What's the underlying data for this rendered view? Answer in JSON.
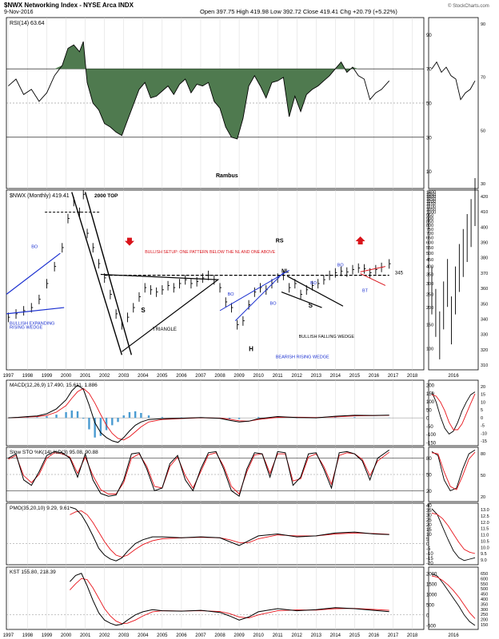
{
  "header": {
    "symbol_line": "$NWX Networking Index - NYSE Arca INDX",
    "date": "9-Nov-2016",
    "ohlc": "Open 397.75  High 419.98  Low 392.72  Close 419.41  Chg +20.79 (+5.22%)",
    "watermark": "© StockCharts.com"
  },
  "colors": {
    "price": "#000000",
    "signal": "#e8141b",
    "hist": "#4a9bd1",
    "rsi_fill": "#4f7a4f",
    "annot_blue": "#1a2fd0",
    "annot_red": "#d9141b"
  },
  "chart_data": [
    {
      "type": "line",
      "panel": "rsi",
      "title": "RSI(14) 63.64",
      "yticks": [
        10,
        30,
        50,
        70,
        90
      ],
      "ylim": [
        0,
        100
      ],
      "x": [
        1997.0,
        1997.4,
        1997.8,
        1998.2,
        1998.6,
        1999.0,
        1999.4,
        1999.8,
        2000.1,
        2000.4,
        2000.7,
        2000.9,
        2001.1,
        2001.4,
        2001.7,
        2002.0,
        2002.3,
        2002.6,
        2002.9,
        2003.2,
        2003.5,
        2003.8,
        2004.1,
        2004.4,
        2004.7,
        2005.0,
        2005.3,
        2005.6,
        2005.9,
        2006.2,
        2006.5,
        2006.8,
        2007.1,
        2007.4,
        2007.7,
        2008.0,
        2008.3,
        2008.6,
        2008.9,
        2009.2,
        2009.5,
        2009.8,
        2010.1,
        2010.4,
        2010.7,
        2011.0,
        2011.3,
        2011.6,
        2011.9,
        2012.2,
        2012.5,
        2012.8,
        2013.1,
        2013.4,
        2013.7,
        2014.0,
        2014.3,
        2014.6,
        2014.9,
        2015.2,
        2015.5,
        2015.8,
        2016.1,
        2016.4,
        2016.8
      ],
      "values": [
        60,
        64,
        55,
        58,
        51,
        56,
        66,
        72,
        82,
        84,
        80,
        86,
        62,
        50,
        46,
        38,
        36,
        33,
        31,
        40,
        49,
        58,
        62,
        53,
        54,
        57,
        60,
        55,
        61,
        64,
        56,
        61,
        60,
        62,
        51,
        47,
        36,
        30,
        29,
        41,
        60,
        66,
        60,
        53,
        62,
        63,
        65,
        42,
        54,
        45,
        55,
        58,
        60,
        63,
        66,
        70,
        74,
        68,
        71,
        66,
        64,
        52,
        56,
        58,
        63
      ],
      "fill_above": 70
    },
    {
      "type": "line",
      "panel": "price",
      "title": "$NWX (Monthly) 419.41",
      "scale": "log",
      "yticks": [
        100,
        150,
        200,
        250,
        300,
        350,
        400,
        450,
        500,
        550,
        600,
        650,
        700,
        750,
        800,
        850,
        900,
        950,
        1000,
        1050,
        1100,
        1150,
        1200,
        1250,
        1300,
        1350,
        1400
      ],
      "ylim": [
        70,
        1450
      ],
      "x": [
        1997.0,
        1997.4,
        1997.8,
        1998.2,
        1998.6,
        1999.0,
        1999.4,
        1999.8,
        2000.1,
        2000.4,
        2000.7,
        2000.9,
        2001.1,
        2001.4,
        2001.7,
        2002.0,
        2002.3,
        2002.6,
        2002.9,
        2003.2,
        2003.5,
        2003.8,
        2004.1,
        2004.4,
        2004.7,
        2005.0,
        2005.3,
        2005.6,
        2005.9,
        2006.2,
        2006.5,
        2006.8,
        2007.1,
        2007.4,
        2007.7,
        2008.0,
        2008.3,
        2008.6,
        2008.9,
        2009.2,
        2009.5,
        2009.8,
        2010.1,
        2010.4,
        2010.7,
        2011.0,
        2011.3,
        2011.6,
        2011.9,
        2012.2,
        2012.5,
        2012.8,
        2013.1,
        2013.4,
        2013.7,
        2014.0,
        2014.3,
        2014.6,
        2014.9,
        2015.2,
        2015.5,
        2015.8,
        2016.1,
        2016.4,
        2016.8
      ],
      "values": [
        170,
        180,
        190,
        200,
        230,
        300,
        400,
        550,
        900,
        1200,
        1000,
        1350,
        700,
        550,
        420,
        330,
        250,
        180,
        150,
        170,
        200,
        240,
        280,
        270,
        260,
        270,
        290,
        280,
        300,
        320,
        300,
        310,
        330,
        345,
        320,
        280,
        220,
        200,
        150,
        160,
        210,
        260,
        280,
        270,
        300,
        330,
        345,
        280,
        300,
        250,
        270,
        290,
        300,
        320,
        345,
        360,
        370,
        365,
        380,
        390,
        385,
        360,
        380,
        395,
        419
      ]
    },
    {
      "type": "line",
      "panel": "macd",
      "title": "MACD(12,26,9) 17.490, 15.611, 1.886",
      "yticks": [
        -150,
        -100,
        -50,
        0,
        50,
        100,
        150,
        200
      ],
      "ylim": [
        -170,
        230
      ],
      "x": [
        1997.0,
        1997.5,
        1998.0,
        1998.5,
        1999.0,
        1999.5,
        2000.0,
        2000.3,
        2000.6,
        2000.9,
        2001.2,
        2001.5,
        2001.8,
        2002.1,
        2002.4,
        2002.7,
        2003.0,
        2003.3,
        2003.6,
        2003.9,
        2004.3,
        2005.0,
        2006.0,
        2007.0,
        2008.0,
        2008.5,
        2009.0,
        2009.5,
        2010.0,
        2011.0,
        2012.0,
        2013.0,
        2014.0,
        2015.0,
        2016.0,
        2016.8
      ],
      "macd": [
        0,
        3,
        8,
        12,
        25,
        55,
        110,
        165,
        200,
        175,
        80,
        -30,
        -90,
        -120,
        -140,
        -150,
        -120,
        -80,
        -45,
        -25,
        -10,
        -5,
        -2,
        2,
        -3,
        -15,
        -25,
        -20,
        -5,
        8,
        2,
        0,
        10,
        16,
        15,
        17
      ],
      "signal": [
        0,
        2,
        5,
        8,
        15,
        35,
        75,
        120,
        160,
        180,
        150,
        90,
        20,
        -45,
        -95,
        -125,
        -135,
        -115,
        -85,
        -55,
        -25,
        -10,
        -4,
        0,
        -1,
        -8,
        -18,
        -20,
        -10,
        3,
        4,
        2,
        6,
        12,
        14,
        15.6
      ]
    },
    {
      "type": "line",
      "panel": "stoch",
      "title": "Slow STO %K(14) %D(3) 95.08, 90.88",
      "yticks": [
        20,
        50,
        80
      ],
      "ylim": [
        0,
        100
      ],
      "x": [
        1997.0,
        1997.4,
        1997.8,
        1998.2,
        1998.6,
        1999.0,
        1999.4,
        1999.8,
        2000.2,
        2000.6,
        2001.0,
        2001.4,
        2001.8,
        2002.2,
        2002.6,
        2003.0,
        2003.4,
        2003.8,
        2004.2,
        2004.6,
        2005.0,
        2005.4,
        2005.8,
        2006.2,
        2006.6,
        2007.0,
        2007.4,
        2007.8,
        2008.2,
        2008.6,
        2009.0,
        2009.4,
        2009.8,
        2010.2,
        2010.6,
        2011.0,
        2011.4,
        2011.8,
        2012.2,
        2012.6,
        2013.0,
        2013.4,
        2013.8,
        2014.2,
        2014.6,
        2015.0,
        2015.4,
        2015.8,
        2016.2,
        2016.8
      ],
      "k": [
        80,
        88,
        40,
        30,
        55,
        85,
        92,
        90,
        80,
        45,
        88,
        40,
        15,
        10,
        12,
        40,
        88,
        90,
        60,
        20,
        25,
        70,
        85,
        40,
        20,
        60,
        90,
        92,
        60,
        20,
        10,
        60,
        90,
        88,
        45,
        92,
        90,
        30,
        45,
        88,
        90,
        60,
        25,
        90,
        92,
        88,
        75,
        40,
        80,
        95
      ],
      "d": [
        78,
        85,
        48,
        35,
        50,
        80,
        90,
        88,
        82,
        52,
        82,
        48,
        22,
        14,
        14,
        35,
        80,
        88,
        65,
        28,
        25,
        65,
        82,
        48,
        25,
        55,
        86,
        90,
        65,
        28,
        14,
        55,
        86,
        88,
        52,
        88,
        88,
        38,
        42,
        82,
        88,
        65,
        32,
        85,
        90,
        88,
        78,
        48,
        75,
        90.9
      ]
    },
    {
      "type": "line",
      "panel": "pmo",
      "title": "PMO(35,20,10) 9.29, 9.61",
      "yticks": [
        -20,
        -15,
        -10,
        -5,
        0,
        5,
        10,
        15,
        20,
        25,
        30,
        35,
        40
      ],
      "ylim": [
        -22,
        42
      ],
      "x": [
        2000.2,
        2000.5,
        2000.8,
        2001.1,
        2001.4,
        2001.7,
        2002.0,
        2002.3,
        2002.6,
        2002.9,
        2003.2,
        2003.6,
        2004.0,
        2004.5,
        2005.0,
        2006.0,
        2007.0,
        2008.0,
        2008.5,
        2009.0,
        2009.5,
        2010.0,
        2011.0,
        2012.0,
        2013.0,
        2014.0,
        2015.0,
        2016.0,
        2016.8
      ],
      "pmo": [
        38,
        36,
        30,
        20,
        8,
        -5,
        -12,
        -16,
        -18,
        -15,
        -8,
        0,
        4,
        7,
        7,
        6,
        7,
        6,
        2,
        -2,
        3,
        8,
        10,
        7,
        8,
        11,
        12,
        10,
        9.3
      ],
      "signal": [
        30,
        33,
        34,
        30,
        22,
        12,
        2,
        -6,
        -12,
        -14,
        -12,
        -6,
        -1,
        3,
        5,
        6,
        6.5,
        6,
        4,
        1,
        1,
        5,
        9,
        8,
        8,
        10,
        11,
        10.5,
        9.6
      ]
    },
    {
      "type": "line",
      "panel": "kst",
      "title": "KST 155.80, 218.39",
      "yticks": [
        -500,
        0,
        500,
        1000,
        1500,
        2000
      ],
      "ylim": [
        -700,
        2300
      ],
      "x": [
        2000.2,
        2000.5,
        2000.8,
        2001.1,
        2001.4,
        2001.7,
        2002.0,
        2002.3,
        2002.6,
        2002.9,
        2003.2,
        2003.6,
        2004.0,
        2004.5,
        2005.0,
        2006.0,
        2007.0,
        2008.0,
        2008.5,
        2009.0,
        2009.5,
        2010.0,
        2011.0,
        2012.0,
        2013.0,
        2014.0,
        2015.0,
        2016.0,
        2016.8
      ],
      "kst": [
        1600,
        1900,
        2000,
        1400,
        700,
        100,
        -250,
        -400,
        -500,
        -450,
        -250,
        0,
        150,
        250,
        200,
        180,
        220,
        120,
        -50,
        -250,
        -100,
        150,
        300,
        200,
        250,
        350,
        300,
        220,
        156
      ],
      "signal": [
        1200,
        1500,
        1750,
        1700,
        1300,
        800,
        300,
        -50,
        -300,
        -420,
        -400,
        -250,
        -50,
        150,
        200,
        190,
        200,
        160,
        60,
        -100,
        -150,
        0,
        200,
        240,
        230,
        300,
        310,
        260,
        218
      ]
    }
  ],
  "xaxis_years": [
    "1997",
    "1998",
    "1999",
    "2000",
    "2001",
    "2002",
    "2003",
    "2004",
    "2005",
    "2006",
    "2007",
    "2008",
    "2009",
    "2010",
    "2011",
    "2012",
    "2013",
    "2014",
    "2015",
    "2016",
    "2017",
    "2018"
  ],
  "annotations": {
    "watermark_name": "Rambus",
    "top_2000": "2000 TOP",
    "rs": "RS",
    "nl": "NL",
    "nl_value": "345",
    "bullish_setup": "BULLISH SETUP: ONE PATTERN BELOW THE NL AND ONE ABOVE",
    "expanding_wedge": "BULLISH EXPANDING RISING WEDGE",
    "triangle": "TRIANGLE",
    "s_left": "S",
    "s_right": "S",
    "h": "H",
    "bo": "BO",
    "bt": "BT",
    "bearish_wedge": "BEARISH RISING WEDGE",
    "falling_wedge": "BULLISH FALLING WEDGE"
  },
  "side_panel": {
    "year_label": "2016",
    "rsi_ticks": [
      "90",
      "70",
      "50",
      "30"
    ],
    "price_ticks": [
      "420",
      "410",
      "400",
      "390",
      "380",
      "370",
      "360",
      "350",
      "340",
      "330",
      "320",
      "310"
    ],
    "macd_ticks": [
      "20",
      "15",
      "10",
      "5",
      "0",
      "-5",
      "-10",
      "-15"
    ],
    "stoch_ticks": [
      "80",
      "50",
      "20"
    ],
    "pmo_ticks": [
      "13.0",
      "12.5",
      "12.0",
      "11.5",
      "11.0",
      "10.5",
      "10.0",
      "9.5",
      "9.0"
    ],
    "kst_ticks": [
      "650",
      "600",
      "550",
      "500",
      "450",
      "400",
      "350",
      "300",
      "250",
      "200",
      "150"
    ]
  }
}
